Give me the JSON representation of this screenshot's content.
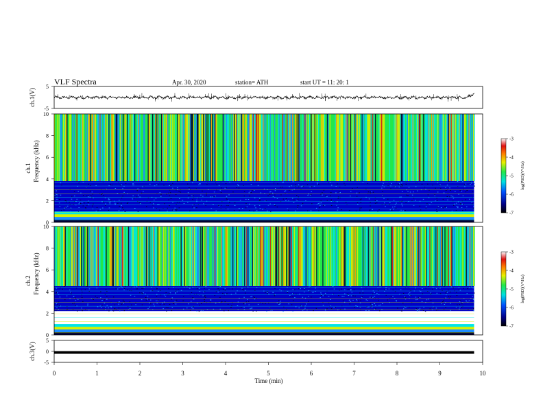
{
  "header": {
    "title": "VLF  Spectra",
    "date": "Apr. 30, 2020",
    "station": "station= ATH",
    "start": "start  UT  =    11: 20: 1"
  },
  "chart_data": [
    {
      "type": "line",
      "ylabel": "ch.1(V)",
      "ylim": [
        -5,
        5
      ],
      "yticks": [
        "5",
        "-5"
      ],
      "xlim": [
        0,
        10
      ],
      "series": [
        {
          "baseline": 0,
          "noise_amplitude": 0.5,
          "spike_max": 2.0,
          "end_rise": 1.5
        }
      ]
    },
    {
      "type": "heatmap",
      "ylabel_top": "ch.1",
      "ylabel_bottom": "Frequency  (kHz)",
      "ylim": [
        0,
        10
      ],
      "yticks": [
        "0",
        "2",
        "4",
        "6",
        "8",
        "10"
      ],
      "xlim": [
        0,
        10
      ],
      "data_end_min": 9.8,
      "low_band_khz": [
        1.0,
        3.8
      ],
      "colorbar": {
        "label": "log(PSD)(V²/Hz)",
        "range": [
          -7,
          -3
        ],
        "ticks": [
          "-3",
          "-4",
          "-5",
          "-6",
          "-7"
        ]
      }
    },
    {
      "type": "heatmap",
      "ylabel_top": "ch.2",
      "ylabel_bottom": "Frequency  (kHz)",
      "ylim": [
        0,
        10
      ],
      "yticks": [
        "0",
        "2",
        "4",
        "6",
        "8",
        "10"
      ],
      "xlim": [
        0,
        10
      ],
      "data_end_min": 9.8,
      "low_band_khz": [
        2.2,
        4.5
      ],
      "colorbar": {
        "label": "log(PSD)(V²/Hz)",
        "range": [
          -7,
          -3
        ],
        "ticks": [
          "-3",
          "-4",
          "-5",
          "-6",
          "-7"
        ]
      }
    },
    {
      "type": "line",
      "ylabel": "ch.3(V)",
      "ylim": [
        -5,
        5
      ],
      "yticks": [
        "5",
        "0",
        "-5"
      ],
      "xlim": [
        0,
        10
      ],
      "xlabel": "Time  (min)",
      "xticks": [
        "0",
        "1",
        "2",
        "3",
        "4",
        "5",
        "6",
        "7",
        "8",
        "9",
        "10"
      ],
      "series": [
        {
          "baseline": -0.5,
          "line_thickness_v": 1.2,
          "data_end_min": 9.8
        }
      ]
    }
  ],
  "colors": {
    "colormap": [
      "#00003a",
      "#0000c8",
      "#1e8cff",
      "#00e6e6",
      "#22e84a",
      "#d8f000",
      "#ff9a00",
      "#e01010",
      "#ffffff"
    ]
  }
}
